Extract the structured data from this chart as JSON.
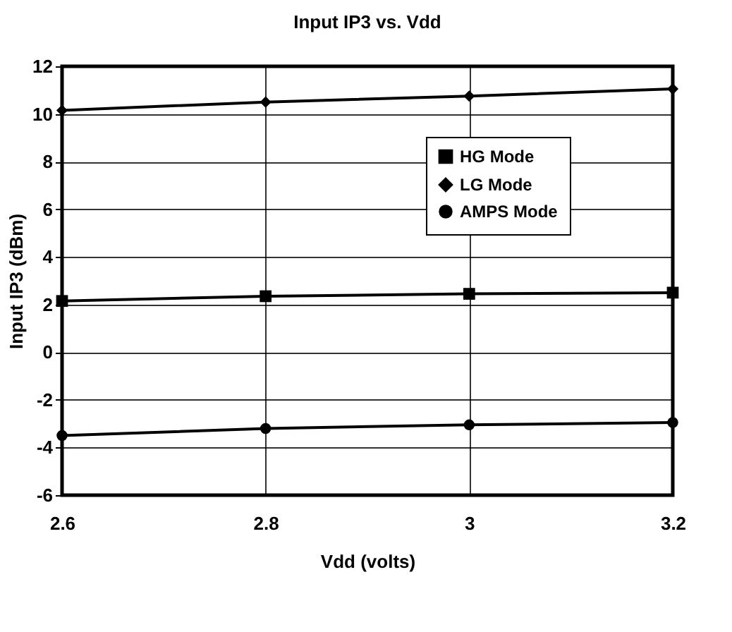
{
  "chart_data": {
    "type": "line",
    "title": "Input IP3 vs. Vdd",
    "xlabel": "Vdd (volts)",
    "ylabel": "Input IP3 (dBm)",
    "x": [
      2.6,
      2.8,
      3,
      3.2
    ],
    "series": [
      {
        "name": "HG Mode",
        "color": "#000000",
        "marker": "square",
        "values": [
          2.15,
          2.35,
          2.45,
          2.5
        ]
      },
      {
        "name": "LG Mode",
        "color": "#000000",
        "marker": "diamond",
        "values": [
          10.15,
          10.5,
          10.75,
          11.05
        ]
      },
      {
        "name": "AMPS Mode",
        "color": "#000000",
        "marker": "circle",
        "values": [
          -3.5,
          -3.2,
          -3.05,
          -2.95
        ]
      }
    ],
    "xlim": [
      2.6,
      3.2
    ],
    "xticks": [
      2.6,
      2.8,
      3,
      3.2
    ],
    "ylim": [
      -6,
      12
    ],
    "yticks": [
      -6,
      -4,
      -2,
      0,
      2,
      4,
      6,
      8,
      10,
      12
    ],
    "grid": true,
    "legend": "right",
    "line_style": "solid"
  }
}
